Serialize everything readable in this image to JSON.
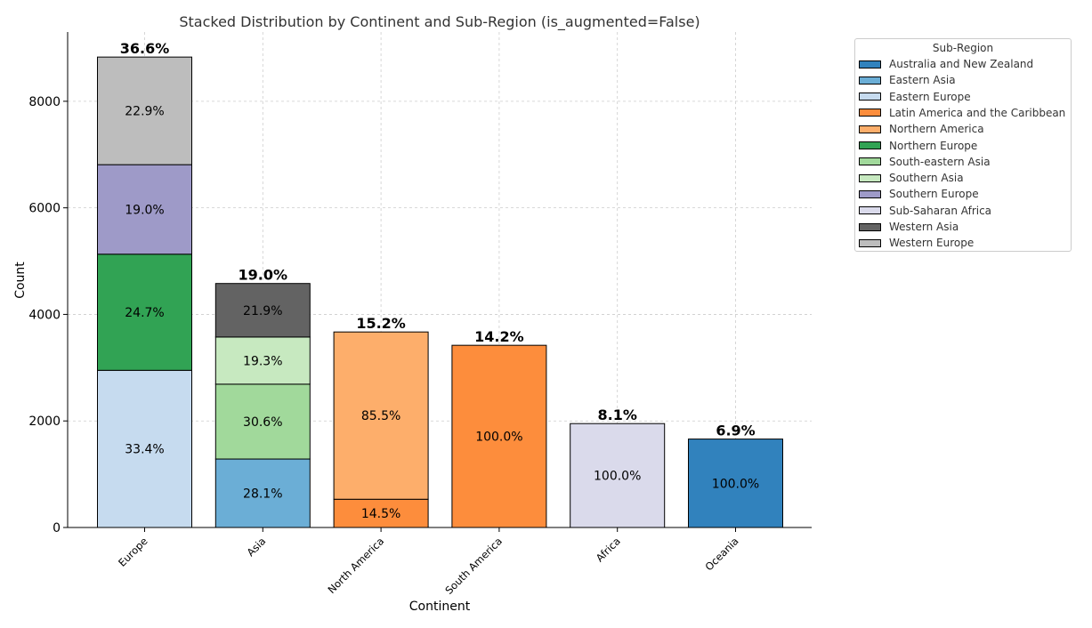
{
  "chart_data": {
    "type": "bar",
    "stacked": true,
    "title": "Stacked Distribution by Continent and Sub-Region (is_augmented=False)",
    "xlabel": "Continent",
    "ylabel": "Count",
    "ylim": [
      0,
      9300
    ],
    "yticks": [
      0,
      2000,
      4000,
      6000,
      8000
    ],
    "grid": true,
    "legend_title": "Sub-Region",
    "legend_placement": "outside-right-top",
    "colors": {
      "Australia and New Zealand": "#3182bd",
      "Eastern Asia": "#6baed6",
      "Eastern Europe": "#c6dbef",
      "Latin America and the Caribbean": "#fd8d3c",
      "Northern America": "#fdae6b",
      "Northern Europe": "#31a354",
      "South-eastern Asia": "#a1d99b",
      "Southern Asia": "#c7e9c0",
      "Southern Europe": "#9e9ac8",
      "Sub-Saharan Africa": "#dadaeb",
      "Western Asia": "#636363",
      "Western Europe": "#bdbdbd"
    },
    "legend": [
      "Australia and New Zealand",
      "Eastern Asia",
      "Eastern Europe",
      "Latin America and the Caribbean",
      "Northern America",
      "Northern Europe",
      "South-eastern Asia",
      "Southern Asia",
      "Southern Europe",
      "Sub-Saharan Africa",
      "Western Asia",
      "Western Europe"
    ],
    "categories": [
      "Europe",
      "Asia",
      "North America",
      "South America",
      "Africa",
      "Oceania"
    ],
    "bars": [
      {
        "category": "Europe",
        "total_label": "36.6%",
        "segments": [
          {
            "name": "Eastern Europe",
            "value": 2950,
            "label": "33.4%"
          },
          {
            "name": "Northern Europe",
            "value": 2180,
            "label": "24.7%"
          },
          {
            "name": "Southern Europe",
            "value": 1680,
            "label": "19.0%"
          },
          {
            "name": "Western Europe",
            "value": 2020,
            "label": "22.9%"
          }
        ]
      },
      {
        "category": "Asia",
        "total_label": "19.0%",
        "segments": [
          {
            "name": "Eastern Asia",
            "value": 1285,
            "label": "28.1%"
          },
          {
            "name": "South-eastern Asia",
            "value": 1405,
            "label": "30.6%"
          },
          {
            "name": "Southern Asia",
            "value": 885,
            "label": "19.3%"
          },
          {
            "name": "Western Asia",
            "value": 1005,
            "label": "21.9%"
          }
        ]
      },
      {
        "category": "North America",
        "total_label": "15.2%",
        "segments": [
          {
            "name": "Latin America and the Caribbean",
            "value": 530,
            "label": "14.5%"
          },
          {
            "name": "Northern America",
            "value": 3140,
            "label": "85.5%"
          }
        ]
      },
      {
        "category": "South America",
        "total_label": "14.2%",
        "segments": [
          {
            "name": "Latin America and the Caribbean",
            "value": 3420,
            "label": "100.0%"
          }
        ]
      },
      {
        "category": "Africa",
        "total_label": "8.1%",
        "segments": [
          {
            "name": "Sub-Saharan Africa",
            "value": 1950,
            "label": "100.0%"
          }
        ]
      },
      {
        "category": "Oceania",
        "total_label": "6.9%",
        "segments": [
          {
            "name": "Australia and New Zealand",
            "value": 1660,
            "label": "100.0%"
          }
        ]
      }
    ]
  }
}
